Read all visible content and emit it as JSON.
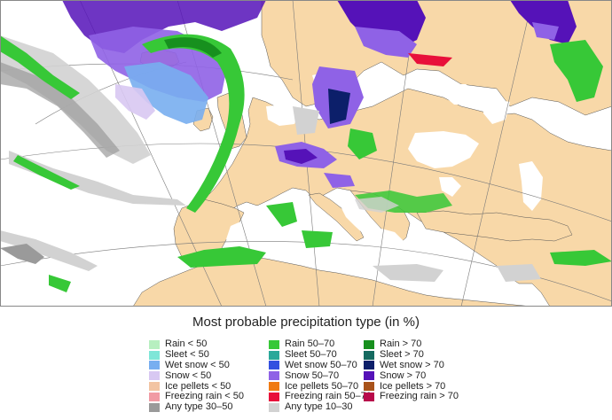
{
  "legend": {
    "title": "Most probable precipitation type (in %)",
    "columns": [
      [
        {
          "label": "Rain < 50",
          "color": "#b7efc0"
        },
        {
          "label": "Sleet < 50",
          "color": "#7fe6d8"
        },
        {
          "label": "Wet snow < 50",
          "color": "#78aef0"
        },
        {
          "label": "Snow < 50",
          "color": "#d8c8f2"
        },
        {
          "label": "Ice pellets < 50",
          "color": "#f2c4a2"
        },
        {
          "label": "Freezing rain < 50",
          "color": "#f19ba4"
        },
        {
          "label": "Any type 30–50",
          "color": "#9a9a9a"
        }
      ],
      [
        {
          "label": "Rain 50–70",
          "color": "#37c837"
        },
        {
          "label": "Sleet 50–70",
          "color": "#2aa89a"
        },
        {
          "label": "Wet snow 50–70",
          "color": "#3350e0"
        },
        {
          "label": "Snow 50–70",
          "color": "#8f62e6"
        },
        {
          "label": "Ice pellets 50–70",
          "color": "#f07a12"
        },
        {
          "label": "Freezing rain 50–70",
          "color": "#e8103a"
        },
        {
          "label": "Any type 10–30",
          "color": "#d2d2d2"
        }
      ],
      [
        {
          "label": "Rain > 70",
          "color": "#17901e"
        },
        {
          "label": "Sleet > 70",
          "color": "#156a60"
        },
        {
          "label": "Wet snow > 70",
          "color": "#0c1f6a"
        },
        {
          "label": "Snow > 70",
          "color": "#5512b8"
        },
        {
          "label": "Ice pellets > 70",
          "color": "#a8521a"
        },
        {
          "label": "Freezing rain > 70",
          "color": "#b80a4a"
        }
      ]
    ]
  },
  "map": {
    "land_color": "#f8d8a8",
    "sea_color": "#ffffff",
    "graticule_color": "#7a7a7a"
  }
}
